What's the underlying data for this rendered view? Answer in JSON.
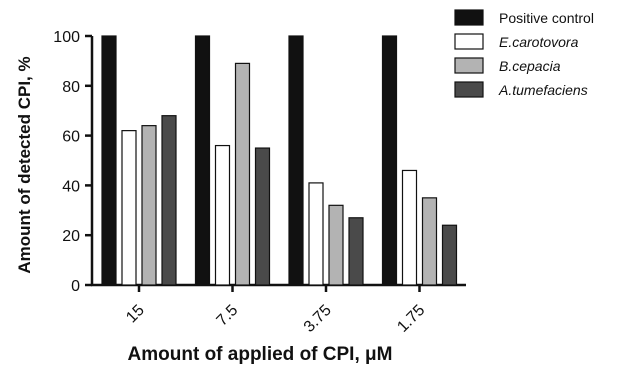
{
  "chart_data": {
    "type": "bar",
    "title": "",
    "xlabel": "Amount of applied of CPI, μM",
    "ylabel": "Amount of detected CPI, %",
    "ylim": [
      0,
      100
    ],
    "yticks": [
      0,
      20,
      40,
      60,
      80,
      100
    ],
    "categories": [
      "15",
      "7.5",
      "3.75",
      "1.75"
    ],
    "grid": false,
    "legend": "top-right",
    "series": [
      {
        "name": "Positive control",
        "italic": false,
        "color": "#111111",
        "values": [
          100,
          100,
          100,
          100
        ]
      },
      {
        "name": "E.carotovora",
        "italic": true,
        "color": "#ffffff",
        "values": [
          62,
          56,
          41,
          46
        ]
      },
      {
        "name": "B.cepacia",
        "italic": true,
        "color": "#b3b3b3",
        "values": [
          64,
          89,
          32,
          35
        ]
      },
      {
        "name": "A.tumefaciens",
        "italic": true,
        "color": "#4a4a4a",
        "values": [
          68,
          55,
          27,
          24
        ]
      }
    ]
  }
}
